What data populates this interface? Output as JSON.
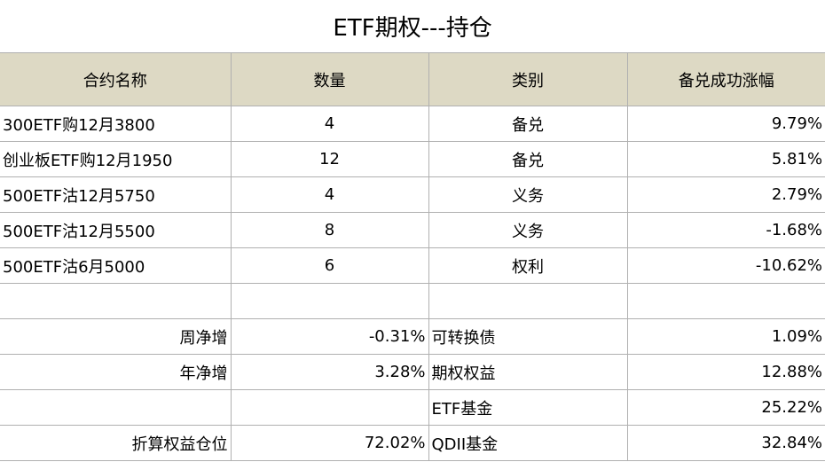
{
  "title": "ETF期权---持仓",
  "header": [
    "合约名称",
    "数量",
    "类别",
    "备兑成功涨幅"
  ],
  "positions": [
    {
      "contract": "300ETF购12月3800",
      "quantity": 4,
      "category": "备兑",
      "gain": "9.79%"
    },
    {
      "contract": "创业板ETF购12月1950",
      "quantity": 12,
      "category": "备兑",
      "gain": "5.81%"
    },
    {
      "contract": "500ETF沽12月5750",
      "quantity": 4,
      "category": "义务",
      "gain": "2.79%"
    },
    {
      "contract": "500ETF沽12月5500",
      "quantity": 8,
      "category": "义务",
      "gain": "-1.68%"
    },
    {
      "contract": "500ETF沽6月5000",
      "quantity": 6,
      "category": "权利",
      "gain": "-10.62%"
    }
  ],
  "summary": {
    "weekly": {
      "label": "周净增",
      "value": "-0.31%"
    },
    "yearly": {
      "label": "年净增",
      "value": "3.28%"
    },
    "position": {
      "label": "折算权益仓位",
      "value": "72.02%"
    }
  },
  "allocation": [
    {
      "name": "可转换债",
      "value": "1.09%"
    },
    {
      "name": "期权权益",
      "value": "12.88%"
    },
    {
      "name": "ETF基金",
      "value": "25.22%"
    },
    {
      "name": "QDII基金",
      "value": "32.84%"
    }
  ]
}
